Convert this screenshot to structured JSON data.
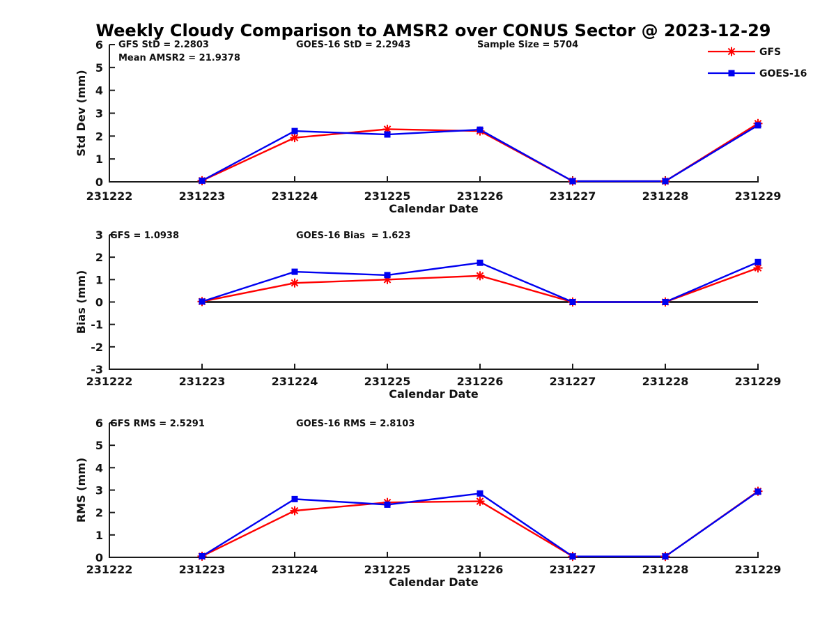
{
  "title": "Weekly Cloudy Comparison to AMSR2 over CONUS Sector @ 2023-12-29",
  "colors": {
    "gfs": "#ff0000",
    "goes16": "#0000f0",
    "axis": "#1a1a1a",
    "zero_line": "#000000",
    "background": "#ffffff",
    "text": "#111111"
  },
  "legend": {
    "position": "top-right",
    "entries": [
      {
        "label": "GFS",
        "color": "#ff0000",
        "marker": "asterisk"
      },
      {
        "label": "GOES-16",
        "color": "#0000f0",
        "marker": "square"
      }
    ]
  },
  "x_axis": {
    "label": "Calendar Date",
    "tick_labels": [
      "231222",
      "231223",
      "231224",
      "231225",
      "231226",
      "231227",
      "231228",
      "231229"
    ]
  },
  "chart_data": [
    {
      "type": "line",
      "name": "std-dev",
      "ylabel": "Std Dev (mm)",
      "xlabel": "Calendar Date",
      "ylim": [
        0,
        6
      ],
      "yticks": [
        0,
        1,
        2,
        3,
        4,
        5,
        6
      ],
      "grid": false,
      "annotations": [
        "GFS StD = 2.2803",
        "GOES-16 StD = 2.2943",
        "Sample Size = 5704",
        "Mean AMSR2 = 21.9378"
      ],
      "x": [
        "231223",
        "231224",
        "231225",
        "231226",
        "231227",
        "231228",
        "231229"
      ],
      "series": [
        {
          "name": "GFS",
          "color": "#ff0000",
          "marker": "asterisk",
          "values": [
            0.05,
            1.93,
            2.3,
            2.22,
            0.03,
            0.03,
            2.55
          ]
        },
        {
          "name": "GOES-16",
          "color": "#0000f0",
          "marker": "square",
          "values": [
            0.05,
            2.22,
            2.07,
            2.28,
            0.03,
            0.03,
            2.47
          ]
        }
      ]
    },
    {
      "type": "line",
      "name": "bias",
      "ylabel": "Bias (mm)",
      "xlabel": "Calendar Date",
      "ylim": [
        -3,
        3
      ],
      "yticks": [
        -3,
        -2,
        -1,
        0,
        1,
        2,
        3
      ],
      "grid": false,
      "zero_line": true,
      "annotations": [
        "GFS = 1.0938",
        "GOES-16 Bias  = 1.623"
      ],
      "x": [
        "231223",
        "231224",
        "231225",
        "231226",
        "231227",
        "231228",
        "231229"
      ],
      "series": [
        {
          "name": "GFS",
          "color": "#ff0000",
          "marker": "asterisk",
          "values": [
            0.02,
            0.85,
            1.0,
            1.17,
            0.0,
            0.0,
            1.52
          ]
        },
        {
          "name": "GOES-16",
          "color": "#0000f0",
          "marker": "square",
          "values": [
            0.02,
            1.35,
            1.2,
            1.75,
            0.0,
            0.0,
            1.78
          ]
        }
      ]
    },
    {
      "type": "line",
      "name": "rms",
      "ylabel": "RMS (mm)",
      "xlabel": "Calendar Date",
      "ylim": [
        0,
        6
      ],
      "yticks": [
        0,
        1,
        2,
        3,
        4,
        5,
        6
      ],
      "grid": false,
      "annotations": [
        "GFS RMS = 2.5291",
        "GOES-16 RMS = 2.8103"
      ],
      "x": [
        "231223",
        "231224",
        "231225",
        "231226",
        "231227",
        "231228",
        "231229"
      ],
      "series": [
        {
          "name": "GFS",
          "color": "#ff0000",
          "marker": "asterisk",
          "values": [
            0.05,
            2.08,
            2.45,
            2.5,
            0.04,
            0.04,
            2.95
          ]
        },
        {
          "name": "GOES-16",
          "color": "#0000f0",
          "marker": "square",
          "values": [
            0.05,
            2.6,
            2.35,
            2.85,
            0.04,
            0.04,
            2.93
          ]
        }
      ]
    }
  ]
}
